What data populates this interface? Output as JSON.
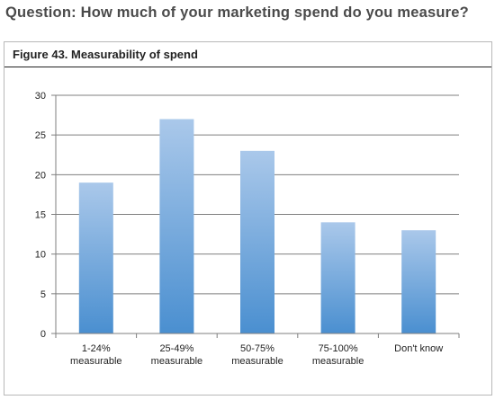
{
  "question": "Question: How much of your marketing spend do you measure?",
  "figure_title": "Figure 43. Measurability of spend",
  "colors": {
    "bar_top": "#aac8ea",
    "bar_bottom": "#4a8fd0",
    "grid": "#7f7f7f",
    "axis": "#7f7f7f"
  },
  "chart_data": {
    "type": "bar",
    "title": "Figure 43. Measurability of spend",
    "categories": [
      [
        "1-24%",
        "measurable"
      ],
      [
        "25-49%",
        "measurable"
      ],
      [
        "50-75%",
        "measurable"
      ],
      [
        "75-100%",
        "measurable"
      ],
      [
        "Don't know"
      ]
    ],
    "values": [
      19,
      27,
      23,
      14,
      13
    ],
    "ylim": [
      0,
      30
    ],
    "yticks": [
      0,
      5,
      10,
      15,
      20,
      25,
      30
    ],
    "grid": true,
    "xlabel": "",
    "ylabel": ""
  }
}
